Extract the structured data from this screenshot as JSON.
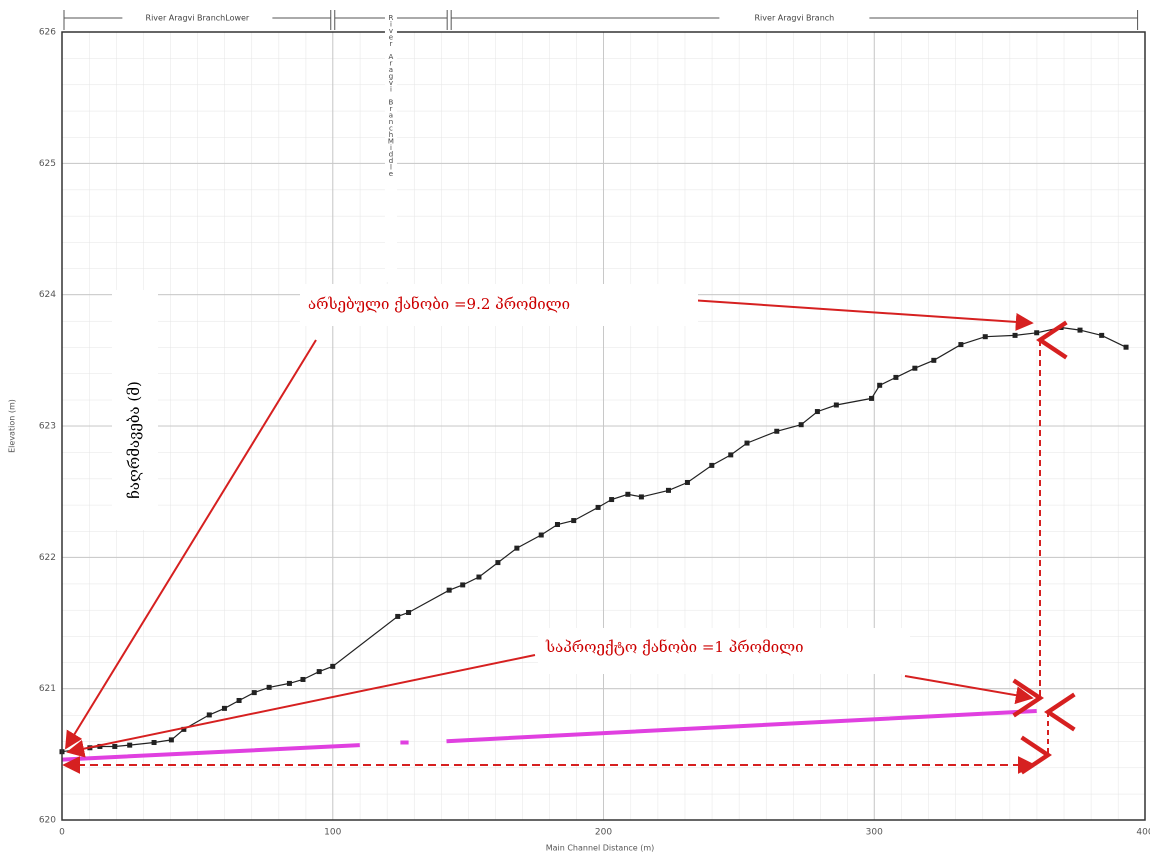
{
  "chart_data": {
    "type": "line",
    "xlabel": "Main Channel Distance (m)",
    "ylabel": "Elevation (m)",
    "xlim": [
      0,
      400
    ],
    "ylim": [
      620,
      626
    ],
    "xticks": [
      0,
      100,
      200,
      300,
      400
    ],
    "yticks": [
      620,
      621,
      622,
      623,
      624,
      625,
      626
    ],
    "grid": true,
    "reaches": [
      {
        "name": "River Aragvi BranchLower",
        "start": 0,
        "end": 100
      },
      {
        "name": "River Aragvi BranchMiddle",
        "start": 100,
        "end": 143
      },
      {
        "name": "River Aragvi Branch",
        "start": 143,
        "end": 398
      }
    ],
    "series": [
      {
        "color": "#222222",
        "marker": "square",
        "x": [
          0,
          10.3,
          14,
          19.5,
          25,
          34,
          40.4,
          45,
          54.4,
          60,
          65.4,
          71,
          76.5,
          84,
          89,
          95,
          100,
          124,
          128,
          143,
          148,
          154,
          161,
          168,
          177,
          183,
          189,
          198,
          203,
          209,
          214,
          224,
          231,
          240,
          247,
          253,
          264,
          273,
          279,
          286,
          299,
          302,
          308,
          315,
          322,
          332,
          341,
          352,
          360,
          369,
          376,
          384,
          393
        ],
        "values": [
          620.52,
          620.55,
          620.56,
          620.56,
          620.57,
          620.59,
          620.61,
          620.69,
          620.8,
          620.85,
          620.91,
          620.97,
          621.01,
          621.04,
          621.07,
          621.13,
          621.17,
          621.55,
          621.58,
          621.75,
          621.79,
          621.85,
          621.96,
          622.07,
          622.17,
          622.25,
          622.28,
          622.38,
          622.44,
          622.48,
          622.46,
          622.51,
          622.57,
          622.7,
          622.78,
          622.87,
          622.96,
          623.01,
          623.11,
          623.16,
          623.21,
          623.31,
          623.37,
          623.44,
          623.5,
          623.62,
          623.68,
          623.69,
          623.71,
          623.75,
          623.73,
          623.69,
          623.6
        ]
      },
      {
        "color": "#e040e0",
        "x": [
          0,
          110,
          116,
          125,
          128,
          135,
          142,
          360
        ],
        "values": [
          620.46,
          620.57,
          null,
          620.59,
          620.59,
          null,
          620.6,
          620.83
        ]
      }
    ],
    "annotations": [
      "არსებული ქანობი =9.2 პრომილი",
      "საპროექტო ქანობი =1 პრომილი",
      "ჩაღრმავება (მ)"
    ]
  }
}
